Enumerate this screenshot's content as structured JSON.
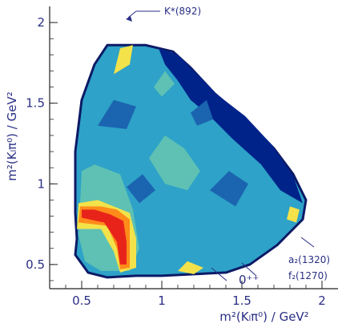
{
  "chart_data": {
    "type": "heatmap",
    "title": "",
    "xlabel": "m²(Kₗπ⁰) / GeV²",
    "ylabel": "m²(Kₗπ⁰) / GeV²",
    "xlim": [
      0.3,
      2.1
    ],
    "ylim": [
      0.35,
      2.1
    ],
    "xticks": [
      "0.5",
      "1",
      "1.5",
      "2"
    ],
    "yticks": [
      "0.5",
      "1",
      "1.5",
      "2"
    ],
    "x_tick_values": [
      0.5,
      1.0,
      1.5,
      2.0
    ],
    "y_tick_values": [
      0.5,
      1.0,
      1.5,
      2.0
    ],
    "grid": false,
    "colors": [
      "#00238a",
      "#1b64b0",
      "#2ea2c8",
      "#5ec1b4",
      "#f3e24a",
      "#ff8c1a",
      "#e8241a"
    ],
    "boundary": [
      [
        0.46,
        0.56
      ],
      [
        0.47,
        0.66
      ],
      [
        0.46,
        0.82
      ],
      [
        0.46,
        1.2
      ],
      [
        0.5,
        1.52
      ],
      [
        0.58,
        1.74
      ],
      [
        0.66,
        1.86
      ],
      [
        0.9,
        1.86
      ],
      [
        1.07,
        1.82
      ],
      [
        1.18,
        1.72
      ],
      [
        1.33,
        1.56
      ],
      [
        1.52,
        1.4
      ],
      [
        1.7,
        1.22
      ],
      [
        1.82,
        1.06
      ],
      [
        1.9,
        0.9
      ],
      [
        1.88,
        0.78
      ],
      [
        1.72,
        0.62
      ],
      [
        1.55,
        0.5
      ],
      [
        1.4,
        0.45
      ],
      [
        1.2,
        0.44
      ],
      [
        1.0,
        0.43
      ],
      [
        0.84,
        0.43
      ],
      [
        0.66,
        0.42
      ],
      [
        0.54,
        0.45
      ]
    ],
    "regions": [
      {
        "level": 0,
        "points": [
          [
            0.98,
            1.84
          ],
          [
            1.1,
            1.8
          ],
          [
            1.22,
            1.68
          ],
          [
            1.35,
            1.55
          ],
          [
            1.52,
            1.42
          ],
          [
            1.68,
            1.25
          ],
          [
            1.82,
            1.05
          ],
          [
            1.88,
            0.88
          ],
          [
            1.74,
            0.96
          ],
          [
            1.62,
            1.12
          ],
          [
            1.44,
            1.28
          ],
          [
            1.3,
            1.42
          ],
          [
            1.18,
            1.52
          ],
          [
            1.1,
            1.64
          ],
          [
            1.02,
            1.74
          ]
        ]
      },
      {
        "level": 2,
        "points": [
          [
            0.52,
            0.9
          ],
          [
            0.6,
            1.1
          ],
          [
            0.7,
            1.38
          ],
          [
            0.86,
            1.52
          ],
          [
            1.02,
            1.44
          ],
          [
            1.16,
            1.26
          ],
          [
            1.32,
            1.06
          ],
          [
            1.5,
            0.88
          ],
          [
            1.62,
            0.66
          ],
          [
            1.4,
            0.52
          ],
          [
            1.1,
            0.54
          ],
          [
            0.9,
            0.62
          ],
          [
            0.7,
            0.7
          ]
        ]
      },
      {
        "level": 3,
        "points": [
          [
            0.92,
            1.16
          ],
          [
            1.02,
            1.3
          ],
          [
            1.14,
            1.22
          ],
          [
            1.24,
            1.08
          ],
          [
            1.16,
            0.96
          ],
          [
            1.02,
            1.0
          ]
        ]
      },
      {
        "level": 1,
        "points": [
          [
            0.6,
            1.36
          ],
          [
            0.7,
            1.52
          ],
          [
            0.84,
            1.48
          ],
          [
            0.78,
            1.34
          ]
        ]
      },
      {
        "level": 1,
        "points": [
          [
            1.3,
            0.96
          ],
          [
            1.42,
            1.08
          ],
          [
            1.54,
            1.0
          ],
          [
            1.46,
            0.86
          ]
        ]
      },
      {
        "level": 1,
        "points": [
          [
            0.78,
            0.98
          ],
          [
            0.88,
            1.06
          ],
          [
            0.96,
            0.96
          ],
          [
            0.86,
            0.88
          ]
        ]
      },
      {
        "level": 1,
        "points": [
          [
            1.18,
            1.44
          ],
          [
            1.28,
            1.52
          ],
          [
            1.32,
            1.4
          ],
          [
            1.22,
            1.36
          ]
        ]
      },
      {
        "level": 3,
        "points": [
          [
            0.48,
            0.68
          ],
          [
            0.5,
            1.08
          ],
          [
            0.58,
            1.12
          ],
          [
            0.74,
            1.06
          ],
          [
            0.82,
            0.84
          ],
          [
            0.86,
            0.6
          ],
          [
            0.8,
            0.46
          ],
          [
            0.62,
            0.46
          ],
          [
            0.52,
            0.52
          ]
        ]
      },
      {
        "level": 4,
        "points": [
          [
            0.47,
            0.72
          ],
          [
            0.48,
            0.88
          ],
          [
            0.6,
            0.9
          ],
          [
            0.7,
            0.86
          ],
          [
            0.8,
            0.82
          ],
          [
            0.84,
            0.66
          ],
          [
            0.84,
            0.48
          ],
          [
            0.74,
            0.45
          ],
          [
            0.7,
            0.58
          ],
          [
            0.62,
            0.72
          ]
        ]
      },
      {
        "level": 5,
        "points": [
          [
            0.48,
            0.76
          ],
          [
            0.49,
            0.86
          ],
          [
            0.62,
            0.86
          ],
          [
            0.72,
            0.84
          ],
          [
            0.8,
            0.78
          ],
          [
            0.8,
            0.58
          ],
          [
            0.8,
            0.48
          ],
          [
            0.74,
            0.47
          ],
          [
            0.72,
            0.6
          ],
          [
            0.66,
            0.74
          ]
        ]
      },
      {
        "level": 6,
        "points": [
          [
            0.5,
            0.79
          ],
          [
            0.5,
            0.84
          ],
          [
            0.58,
            0.84
          ],
          [
            0.68,
            0.81
          ],
          [
            0.76,
            0.77
          ],
          [
            0.78,
            0.64
          ],
          [
            0.78,
            0.5
          ],
          [
            0.74,
            0.5
          ],
          [
            0.72,
            0.64
          ],
          [
            0.64,
            0.76
          ]
        ]
      },
      {
        "level": 4,
        "points": [
          [
            0.7,
            1.68
          ],
          [
            0.74,
            1.84
          ],
          [
            0.82,
            1.86
          ],
          [
            0.8,
            1.74
          ]
        ]
      },
      {
        "level": 4,
        "points": [
          [
            1.78,
            0.78
          ],
          [
            1.8,
            0.86
          ],
          [
            1.86,
            0.84
          ],
          [
            1.84,
            0.76
          ]
        ]
      },
      {
        "level": 4,
        "points": [
          [
            1.1,
            0.46
          ],
          [
            1.16,
            0.52
          ],
          [
            1.26,
            0.48
          ],
          [
            1.2,
            0.44
          ]
        ]
      },
      {
        "level": 3,
        "points": [
          [
            0.95,
            1.6
          ],
          [
            1.02,
            1.7
          ],
          [
            1.08,
            1.62
          ],
          [
            1.0,
            1.54
          ]
        ]
      }
    ],
    "annotations": [
      {
        "text": "K*(892)",
        "x": 0.8,
        "y": 1.86
      },
      {
        "text": "0⁺⁺",
        "x": 1.3,
        "y": 0.44
      },
      {
        "text": "a₂(1320)",
        "x": 1.84,
        "y": 0.62
      },
      {
        "text": "f₂(1270)",
        "x": 1.84,
        "y": 0.62
      }
    ]
  }
}
